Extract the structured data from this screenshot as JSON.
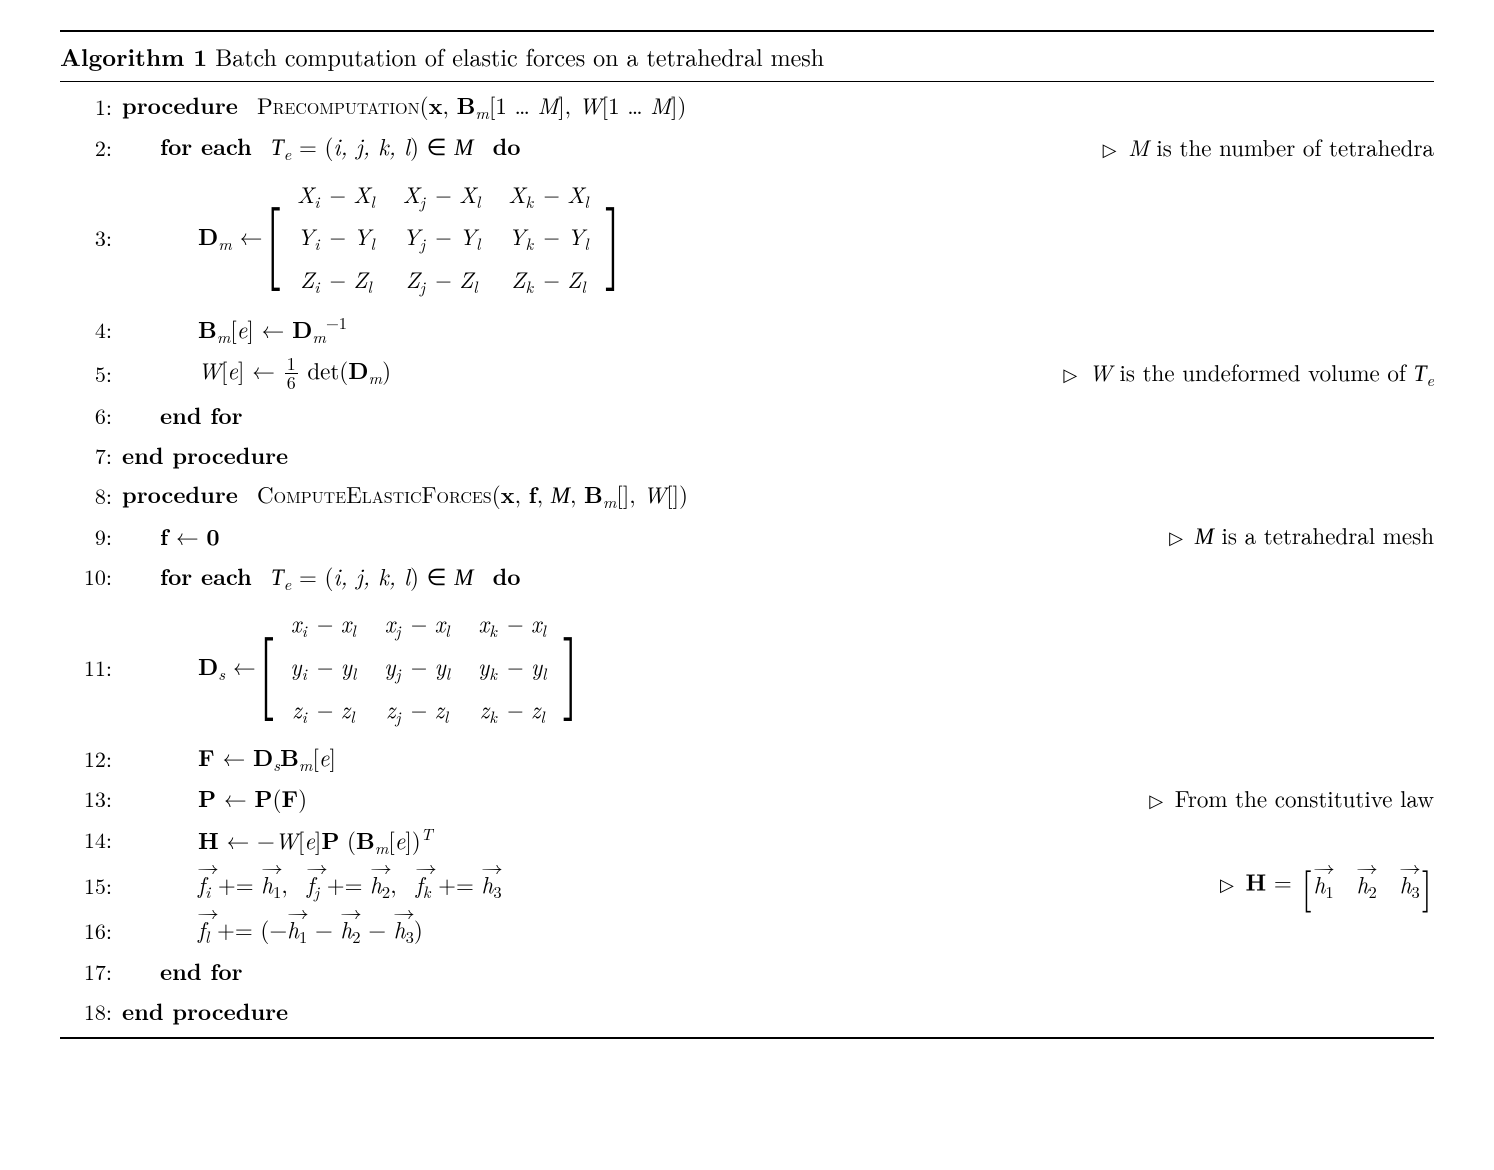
{
  "algo": {
    "number": "1",
    "title": "Batch computation of elastic forces on a tetrahedral mesh",
    "lines": [
      {
        "n": "1:",
        "indent": 0,
        "html": "<span class='b'>procedure</span>&nbsp; <span class='sc'>Precomputation</span>(<span class='b'>x</span>, <span class='b'>B</span><span class='sub'>m</span>[1 … <span class='it'>M</span>], <span class='it'>W</span>[1 … <span class='it'>M</span>])",
        "comment": ""
      },
      {
        "n": "2:",
        "indent": 1,
        "html": "<span class='b'>for each</span>&nbsp; <span class='cal'>T</span><span class='sub'>e</span> = (<span class='it'>i, j, k, l</span>) ∈ <span class='cal'>M</span>&nbsp; <span class='b'>do</span>",
        "comment": "<span class='it'>M</span> is the number of tetrahedra"
      },
      {
        "n": "3:",
        "indent": 2,
        "matrix": "Dm",
        "html": "<span class='b'>D</span><span class='sub'>m</span> ← "
      },
      {
        "n": "4:",
        "indent": 2,
        "html": "<span class='b'>B</span><span class='sub'>m</span>[<span class='it'>e</span>] ← <span class='b'>D</span><span class='sub' style='font-style:italic'>m</span><span class='sup'>−1</span>",
        "comment": ""
      },
      {
        "n": "5:",
        "indent": 2,
        "html": "<span class='it'>W</span>[<span class='it'>e</span>] ← <span class='frac'><span class='num'>1</span><span class='den'>6</span></span> det(<span class='b'>D</span><span class='sub'>m</span>)",
        "comment": "<span class='it'>W</span> is the undeformed volume of <span class='cal'>T</span><span class='sub'>e</span>"
      },
      {
        "n": "6:",
        "indent": 1,
        "html": "<span class='b'>end for</span>",
        "comment": ""
      },
      {
        "n": "7:",
        "indent": 0,
        "html": "<span class='b'>end procedure</span>",
        "comment": ""
      },
      {
        "n": "8:",
        "indent": 0,
        "html": "<span class='b'>procedure</span>&nbsp; <span class='sc'>ComputeElasticForces</span>(<span class='b'>x</span>, <span class='b'>f</span>, <span class='cal'>M</span>, <span class='b'>B</span><span class='sub'>m</span>[], <span class='it'>W</span>[])",
        "comment": ""
      },
      {
        "n": "9:",
        "indent": 1,
        "html": "<span class='b'>f</span> ← <span class='b'>0</span>",
        "comment": "<span class='cal'>M</span> is a tetrahedral mesh"
      },
      {
        "n": "10:",
        "indent": 1,
        "html": "<span class='b'>for each</span>&nbsp; <span class='cal'>T</span><span class='sub'>e</span> = (<span class='it'>i, j, k, l</span>) ∈ <span class='cal'>M</span>&nbsp; <span class='b'>do</span>",
        "comment": ""
      },
      {
        "n": "11:",
        "indent": 2,
        "matrix": "Ds",
        "html": "<span class='b'>D</span><span class='sub'>s</span> ← "
      },
      {
        "n": "12:",
        "indent": 2,
        "html": "<span class='b'>F</span> ← <span class='b'>D</span><span class='sub'>s</span><span class='b'>B</span><span class='sub'>m</span>[<span class='it'>e</span>]",
        "comment": ""
      },
      {
        "n": "13:",
        "indent": 2,
        "html": "<span class='b'>P</span> ← <span class='b'>P</span>(<span class='b'>F</span>)",
        "comment": "From the constitutive law"
      },
      {
        "n": "14:",
        "indent": 2,
        "html": "<span class='b'>H</span> ← −<span class='it'>W</span>[<span class='it'>e</span>]<span class='b'>P</span> (<span class='b'>B</span><span class='sub'>m</span>[<span class='it'>e</span>])<span class='sup it'>T</span>",
        "comment": ""
      },
      {
        "n": "15:",
        "indent": 2,
        "html": "<span class='it vec'>f</span><span class='sub'>i</span> += <span class='it vec'>h</span><span class='sub' style='font-style:normal'>1</span>,&nbsp; <span class='it vec'>f</span><span class='sub'>j</span> += <span class='it vec'>h</span><span class='sub' style='font-style:normal'>2</span>,&nbsp; <span class='it vec'>f</span><span class='sub'>k</span> += <span class='it vec'>h</span><span class='sub' style='font-style:normal'>3</span>",
        "commentHtml": "<span class='b'>H</span> = <span class='matrix'><span class='bracket-sm'>[</span><span><span class='it vec'>h</span><span class='sub' style='font-style:normal'>1</span>&nbsp;&nbsp;<span class='it vec'>h</span><span class='sub' style='font-style:normal'>2</span>&nbsp;&nbsp;<span class='it vec'>h</span><span class='sub' style='font-style:normal'>3</span></span><span class='bracket-sm'>]</span></span>"
      },
      {
        "n": "16:",
        "indent": 2,
        "html": "<span class='it vec'>f</span><span class='sub'>l</span> += (−<span class='it vec'>h</span><span class='sub' style='font-style:normal'>1</span> − <span class='it vec'>h</span><span class='sub' style='font-style:normal'>2</span> − <span class='it vec'>h</span><span class='sub' style='font-style:normal'>3</span>)",
        "comment": ""
      },
      {
        "n": "17:",
        "indent": 1,
        "html": "<span class='b'>end for</span>",
        "comment": ""
      },
      {
        "n": "18:",
        "indent": 0,
        "html": "<span class='b'>end procedure</span>",
        "comment": ""
      }
    ],
    "matrixDm": {
      "rows": [
        [
          "X<span class='sub'>i</span> − X<span class='sub'>l</span>",
          "X<span class='sub'>j</span> − X<span class='sub'>l</span>",
          "X<span class='sub'>k</span> − X<span class='sub'>l</span>"
        ],
        [
          "Y<span class='sub'>i</span> − Y<span class='sub'>l</span>",
          "Y<span class='sub'>j</span> − Y<span class='sub'>l</span>",
          "Y<span class='sub'>k</span> − Y<span class='sub'>l</span>"
        ],
        [
          "Z<span class='sub'>i</span> − Z<span class='sub'>l</span>",
          "Z<span class='sub'>j</span> − Z<span class='sub'>l</span>",
          "Z<span class='sub'>k</span> − Z<span class='sub'>l</span>"
        ]
      ]
    },
    "matrixDs": {
      "rows": [
        [
          "x<span class='sub'>i</span> − x<span class='sub'>l</span>",
          "x<span class='sub'>j</span> − x<span class='sub'>l</span>",
          "x<span class='sub'>k</span> − x<span class='sub'>l</span>"
        ],
        [
          "y<span class='sub'>i</span> − y<span class='sub'>l</span>",
          "y<span class='sub'>j</span> − y<span class='sub'>l</span>",
          "y<span class='sub'>k</span> − y<span class='sub'>l</span>"
        ],
        [
          "z<span class='sub'>i</span> − z<span class='sub'>l</span>",
          "z<span class='sub'>j</span> − z<span class='sub'>l</span>",
          "z<span class='sub'>k</span> − z<span class='sub'>l</span>"
        ]
      ]
    }
  },
  "style": {
    "bodyFontSize": 23,
    "textColor": "#000000",
    "backgroundColor": "#ffffff",
    "ruleColor": "#000000",
    "topRuleWidth": 2.5,
    "bottomRuleWidth": 2.5,
    "midRuleWidth": 1,
    "indentStepPx": 38,
    "linenoWidthPx": 52
  }
}
